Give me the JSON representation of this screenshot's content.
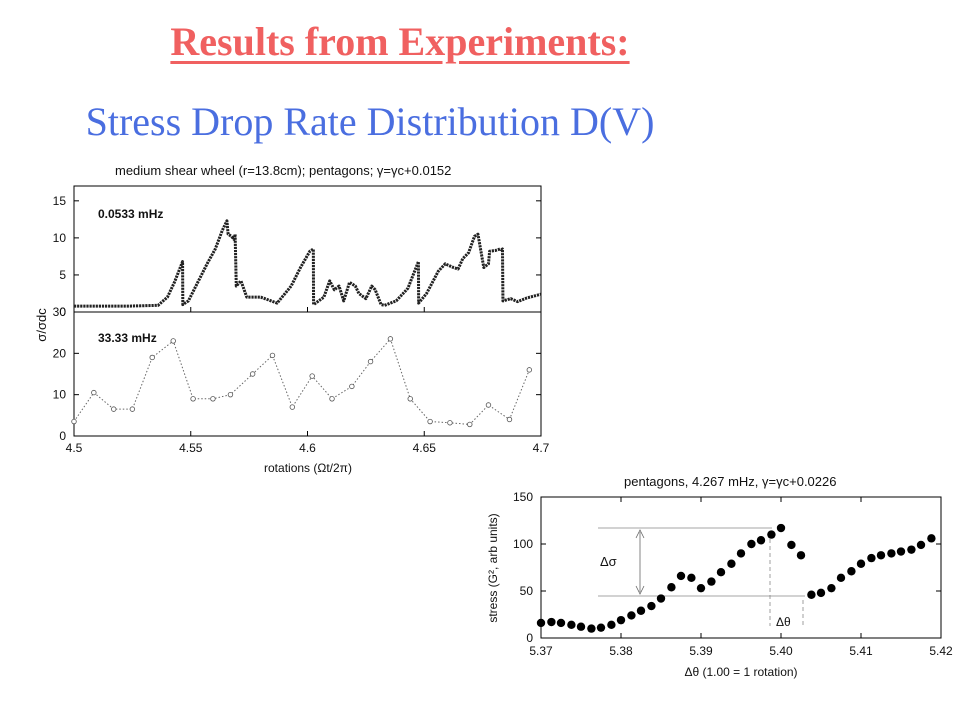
{
  "slide": {
    "title": "Results from Experiments:",
    "subtitle": "Stress Drop Rate Distribution D(V)"
  },
  "chart_data": [
    {
      "type": "line",
      "title": "medium shear wheel (r=13.8cm); pentagons; γ=γc+0.0152",
      "xlabel": "rotations (Ωt/2π)",
      "ylabel": "σ/σdc",
      "xlim": [
        4.5,
        4.7
      ],
      "xticks": [
        "4.5",
        "4.55",
        "4.6",
        "4.65",
        "4.7"
      ],
      "panels": [
        {
          "label": "0.0533 mHz",
          "ylim": [
            0,
            17
          ],
          "yticks": [
            "0",
            "5",
            "10",
            "15"
          ],
          "series": [
            {
              "x": [
                4.5,
                4.512,
                4.524,
                4.536,
                4.54,
                4.543,
                4.5465,
                4.5466,
                4.549,
                4.553,
                4.557,
                4.5605,
                4.5635,
                4.5655,
                4.566,
                4.5675,
                4.5685,
                4.569,
                4.5695,
                4.5715,
                4.574,
                4.58,
                4.587,
                4.593,
                4.597,
                4.601,
                4.6025,
                4.6026,
                4.607,
                4.6095,
                4.6115,
                4.6135,
                4.6155,
                4.618,
                4.6205,
                4.622,
                4.625,
                4.6275,
                4.629,
                4.6305,
                4.6315,
                4.633,
                4.638,
                4.643,
                4.6475,
                4.6476,
                4.651,
                4.656,
                4.659,
                4.6625,
                4.6645,
                4.6665,
                4.669,
                4.6715,
                4.673,
                4.6755,
                4.6775,
                4.678,
                4.6805,
                4.6825,
                4.683,
                4.6835,
                4.6837,
                4.687,
                4.69,
                4.694,
                4.7
              ],
              "y": [
                0.8,
                0.8,
                0.8,
                0.9,
                2.0,
                4.0,
                6.8,
                1.0,
                1.5,
                4.0,
                6.5,
                8.5,
                11.0,
                12.3,
                10.5,
                10.2,
                9.8,
                10.5,
                3.5,
                4.2,
                2.0,
                2.0,
                1.2,
                3.5,
                6.0,
                8.2,
                8.5,
                1.0,
                2.0,
                4.2,
                3.0,
                3.5,
                1.5,
                4.0,
                3.5,
                2.5,
                1.8,
                3.5,
                3.0,
                1.8,
                1.0,
                0.9,
                1.5,
                3.2,
                6.8,
                1.2,
                2.5,
                5.5,
                6.5,
                6.0,
                5.8,
                7.2,
                8.0,
                10.2,
                10.5,
                6.0,
                6.5,
                8.2,
                8.3,
                8.5,
                8.4,
                8.5,
                1.5,
                1.8,
                1.4,
                1.9,
                2.4
              ]
            }
          ]
        },
        {
          "label": "33.33 mHz",
          "ylim": [
            0,
            30
          ],
          "yticks": [
            "0",
            "10",
            "20",
            "30"
          ],
          "series": [
            {
              "x": [
                4.5,
                4.5085,
                4.517,
                4.525,
                4.5335,
                4.5425,
                4.551,
                4.5595,
                4.567,
                4.5765,
                4.585,
                4.5935,
                4.602,
                4.6105,
                4.619,
                4.627,
                4.6355,
                4.644,
                4.6525,
                4.661,
                4.6695,
                4.6775,
                4.6865,
                4.695
              ],
              "y": [
                3.5,
                10.5,
                6.5,
                6.5,
                19.0,
                23.0,
                9.0,
                9.0,
                10.0,
                15.0,
                19.5,
                7.0,
                14.5,
                9.0,
                12.0,
                18.0,
                23.5,
                9.0,
                3.5,
                3.2,
                2.8,
                7.5,
                4.0,
                16.0
              ]
            }
          ]
        }
      ],
      "grid": false
    },
    {
      "type": "scatter",
      "title": "pentagons, 4.267 mHz, γ=γc+0.0226",
      "xlabel": "Δθ (1.00 = 1 rotation)",
      "ylabel": "stress (G², arb units)",
      "xlim": [
        5.37,
        5.42
      ],
      "ylim": [
        0,
        150
      ],
      "xticks": [
        "5.37",
        "5.38",
        "5.39",
        "5.40",
        "5.41",
        "5.42"
      ],
      "yticks": [
        "0",
        "50",
        "100",
        "150"
      ],
      "annotations": [
        "Δσ",
        "Δθ"
      ],
      "grid": false,
      "series": [
        {
          "x": [
            5.37,
            5.3713,
            5.3725,
            5.3738,
            5.375,
            5.3763,
            5.3775,
            5.3788,
            5.38,
            5.3813,
            5.3825,
            5.3838,
            5.385,
            5.3863,
            5.3875,
            5.3888,
            5.39,
            5.3913,
            5.3925,
            5.3938,
            5.395,
            5.3963,
            5.3975,
            5.3988,
            5.4,
            5.4013,
            5.4025,
            5.4038,
            5.405,
            5.4063,
            5.4075,
            5.4088,
            5.41,
            5.4113,
            5.4125,
            5.4138,
            5.415,
            5.4163,
            5.4175,
            5.4188
          ],
          "y": [
            16,
            17,
            16,
            14,
            12,
            10,
            11,
            14,
            19,
            24,
            29,
            34,
            42,
            54,
            66,
            64,
            53,
            60,
            70,
            79,
            90,
            100,
            104,
            110,
            117,
            99,
            88,
            46,
            48,
            53,
            64,
            71,
            79,
            85,
            88,
            90,
            92,
            94,
            99,
            106
          ]
        }
      ]
    }
  ]
}
